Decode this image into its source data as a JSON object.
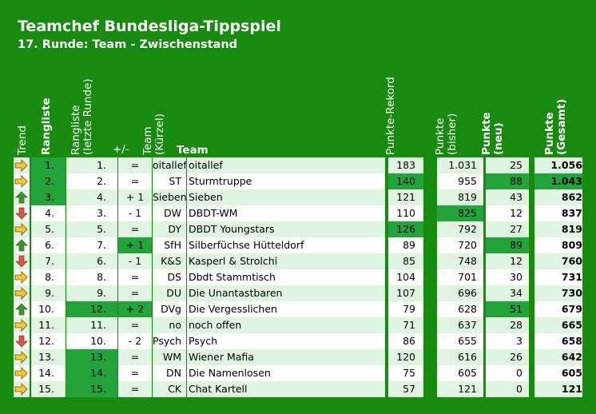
{
  "title": "Teamchef Bundesliga-Tippspiel",
  "subtitle": "17. Runde: Team - Zwischenstand",
  "headers": {
    "trend": "Trend",
    "rangliste": "Rangliste",
    "rangliste_prev": [
      "Rangliste",
      "(letzte Runde)"
    ],
    "plusminus": "+/-",
    "team_short": [
      "Team",
      "(Kürzel)"
    ],
    "team": "Team",
    "rekord": "Punkte-Rekord",
    "bisher": [
      "Punkte",
      "(bisher)"
    ],
    "neu": [
      "Punkte",
      "(neu)"
    ],
    "gesamt": [
      "Punkte",
      "(Gesamt)"
    ]
  },
  "colors": {
    "background": "#178a0f",
    "row_light": "#dff5df",
    "row_white": "#ffffff",
    "highlight": "#23a43a",
    "arrow_up": "#2a9b3a",
    "arrow_down": "#e0504a",
    "arrow_right": "#f7c62b"
  },
  "rows": [
    {
      "trend": "right",
      "rank": "1.",
      "prev": "1.",
      "pm": "=",
      "kurz": "oitallef",
      "team": "oitallef",
      "rekord": "183",
      "bisher": "1.031",
      "neu": "25",
      "gesamt": "1.056",
      "hl": [
        "rank"
      ]
    },
    {
      "trend": "right",
      "rank": "2.",
      "prev": "2.",
      "pm": "=",
      "kurz": "ST",
      "team": "Sturmtruppe",
      "rekord": "140",
      "bisher": "955",
      "neu": "88",
      "gesamt": "1.043",
      "hl": [
        "rank",
        "rekord",
        "neu",
        "gesamt"
      ]
    },
    {
      "trend": "up",
      "rank": "3.",
      "prev": "4.",
      "pm": "+ 1",
      "kurz": "Sieben",
      "team": "Sieben",
      "rekord": "121",
      "bisher": "819",
      "neu": "43",
      "gesamt": "862",
      "hl": [
        "rank"
      ]
    },
    {
      "trend": "down",
      "rank": "4.",
      "prev": "3.",
      "pm": "- 1",
      "kurz": "DW",
      "team": "DBDT-WM",
      "rekord": "110",
      "bisher": "825",
      "neu": "12",
      "gesamt": "837",
      "hl": [
        "bisher"
      ]
    },
    {
      "trend": "right",
      "rank": "5.",
      "prev": "5.",
      "pm": "=",
      "kurz": "DY",
      "team": "DBDT Youngstars",
      "rekord": "126",
      "bisher": "792",
      "neu": "27",
      "gesamt": "819",
      "hl": [
        "rekord"
      ]
    },
    {
      "trend": "up",
      "rank": "6.",
      "prev": "7.",
      "pm": "+ 1",
      "kurz": "SfH",
      "team": "Silberfüchse Hütteldorf",
      "rekord": "89",
      "bisher": "720",
      "neu": "89",
      "gesamt": "809",
      "hl": [
        "pm",
        "neu"
      ]
    },
    {
      "trend": "down",
      "rank": "7.",
      "prev": "6.",
      "pm": "- 1",
      "kurz": "K&S",
      "team": "Kasperl & Strolchi",
      "rekord": "85",
      "bisher": "748",
      "neu": "12",
      "gesamt": "760",
      "hl": []
    },
    {
      "trend": "right",
      "rank": "8.",
      "prev": "8.",
      "pm": "=",
      "kurz": "DS",
      "team": "Dbdt Stammtisch",
      "rekord": "104",
      "bisher": "701",
      "neu": "30",
      "gesamt": "731",
      "hl": []
    },
    {
      "trend": "right",
      "rank": "9.",
      "prev": "9.",
      "pm": "=",
      "kurz": "DU",
      "team": "Die Unantastbaren",
      "rekord": "107",
      "bisher": "696",
      "neu": "34",
      "gesamt": "730",
      "hl": []
    },
    {
      "trend": "up",
      "rank": "10.",
      "prev": "12.",
      "pm": "+ 2",
      "kurz": "DVg",
      "team": "Die Vergesslichen",
      "rekord": "79",
      "bisher": "628",
      "neu": "51",
      "gesamt": "679",
      "hl": [
        "prev",
        "pm",
        "neu"
      ]
    },
    {
      "trend": "right",
      "rank": "11.",
      "prev": "11.",
      "pm": "=",
      "kurz": "no",
      "team": "noch offen",
      "rekord": "71",
      "bisher": "637",
      "neu": "28",
      "gesamt": "665",
      "hl": []
    },
    {
      "trend": "down",
      "rank": "12.",
      "prev": "10.",
      "pm": "- 2",
      "kurz": "Psych",
      "team": "Psych",
      "rekord": "86",
      "bisher": "655",
      "neu": "3",
      "gesamt": "658",
      "hl": []
    },
    {
      "trend": "right",
      "rank": "13.",
      "prev": "13.",
      "pm": "=",
      "kurz": "WM",
      "team": "Wiener Mafia",
      "rekord": "120",
      "bisher": "616",
      "neu": "26",
      "gesamt": "642",
      "hl": [
        "prev"
      ]
    },
    {
      "trend": "right",
      "rank": "14.",
      "prev": "14.",
      "pm": "=",
      "kurz": "DN",
      "team": "Die Namenlosen",
      "rekord": "75",
      "bisher": "605",
      "neu": "0",
      "gesamt": "605",
      "hl": [
        "prev"
      ]
    },
    {
      "trend": "right",
      "rank": "15.",
      "prev": "15.",
      "pm": "=",
      "kurz": "CK",
      "team": "Chat Kartell",
      "rekord": "57",
      "bisher": "121",
      "neu": "0",
      "gesamt": "121",
      "hl": [
        "prev"
      ]
    }
  ]
}
